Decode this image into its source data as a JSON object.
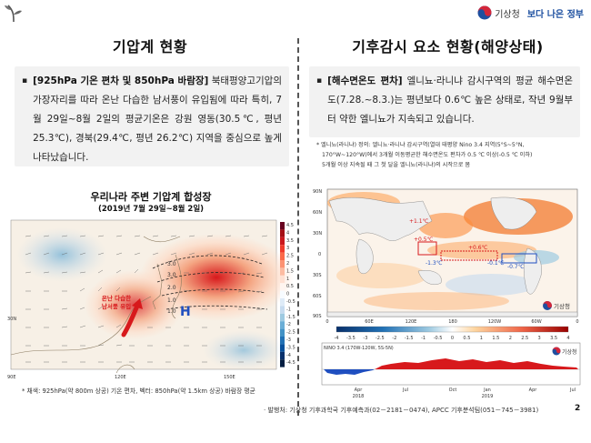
{
  "header": {
    "kma_name": "기상청",
    "gov_slogan": "보다 나은 정부"
  },
  "left": {
    "title": "기압계 현황",
    "box_bullet": "▪",
    "box_heading": "[925hPa 기온 편차 및 850hPa 바람장]",
    "box_text": " 북태평양고기압의 가장자리를 따라 온난 다습한 남서풍이 유입됨에 따라 특히, 7월 29일~8월 2일의 평균기온은 강원 영동(30.5℃, 평년 25.3℃), 경북(29.4℃, 평년 26.2℃) 지역을 중심으로 높게 나타났습니다.",
    "map_title": "우리나라 주변 기압계 합성장",
    "map_subtitle": "(2019년 7월 29일~8월 2일)",
    "map_annotation_line1": "온난 다습한",
    "map_annotation_line2": "남서풍 유입",
    "high_marker": "H",
    "contour_labels": [
      "3.0",
      "3.0",
      "2.0",
      "1.0",
      "1.0"
    ],
    "lat_label": "30N",
    "lon_labels": [
      "90E",
      "120E",
      "150E"
    ],
    "colorbar_labels": [
      "4.5",
      "4",
      "3.5",
      "3",
      "2.5",
      "2",
      "1.5",
      "1",
      "0.5",
      "0",
      "-0.5",
      "-1",
      "-1.5",
      "-2",
      "-2.5",
      "-3",
      "-3.5",
      "-4",
      "-4.5"
    ],
    "caption": "* 채색: 925hPa(약 800m 상공) 기온 편차, 벡터: 850hPa(약 1.5km 상공) 바람장 평균"
  },
  "right": {
    "title": "기후감시 요소 현황(해양상태)",
    "box_bullet": "▪",
    "box_heading": "[해수면온도 편차]",
    "box_text": " 엘니뇨·라니냐 감시구역의 평균 해수면온도(7.28.~8.3.)는 평년보다 0.6℃ 높은 상태로, 작년 9월부터 약한 엘니뇨가 지속되고 있습니다.",
    "note_line1": "* 엘니뇨(라니냐) 정의: 엘니뇨·라니냐 감시구역(열대 태평양 Nino 3.4 지역(5°S~5°N,",
    "note_line2": "170°W~120°W)에서 3개월 이동평균한 해수면온도 편차가 0.5 ℃ 이상(-0.5 ℃ 이하)",
    "note_line3": "5개월 이상 지속될 때 그 첫 달을 엘니뇨(라니냐)의 시작으로 봄",
    "lat_labels": [
      "90N",
      "60N",
      "30N",
      "0",
      "30S",
      "60S",
      "90S"
    ],
    "lon_labels": [
      "0",
      "60E",
      "120E",
      "180",
      "120W",
      "60W",
      "0"
    ],
    "anomaly_labels": [
      "+1.1℃",
      "+0.5℃",
      "+0.6℃",
      "-1.3℃",
      "-0.1℃",
      "-0.7℃"
    ],
    "colorbar_labels": [
      "-4",
      "-3.5",
      "-3",
      "-2.5",
      "-2",
      "-1.5",
      "-1",
      "-0.5",
      "0",
      "0.5",
      "1",
      "1.5",
      "2",
      "2.5",
      "3",
      "3.5",
      "4"
    ],
    "nino_title": "NINO 3.4 (170W-120W, 5S-5N)",
    "nino_time_labels": [
      "Apr",
      "Jul",
      "Oct",
      "Jan",
      "Apr",
      "Jul"
    ],
    "nino_year_labels": [
      "2018",
      "2019"
    ],
    "kma_small": "기상청"
  },
  "footer": {
    "text": "· 발행처: 기상청 기후과학국 기후예측과(02－2181－0474), APCC 기후분석팀(051－745－3981)",
    "page_number": "2"
  }
}
